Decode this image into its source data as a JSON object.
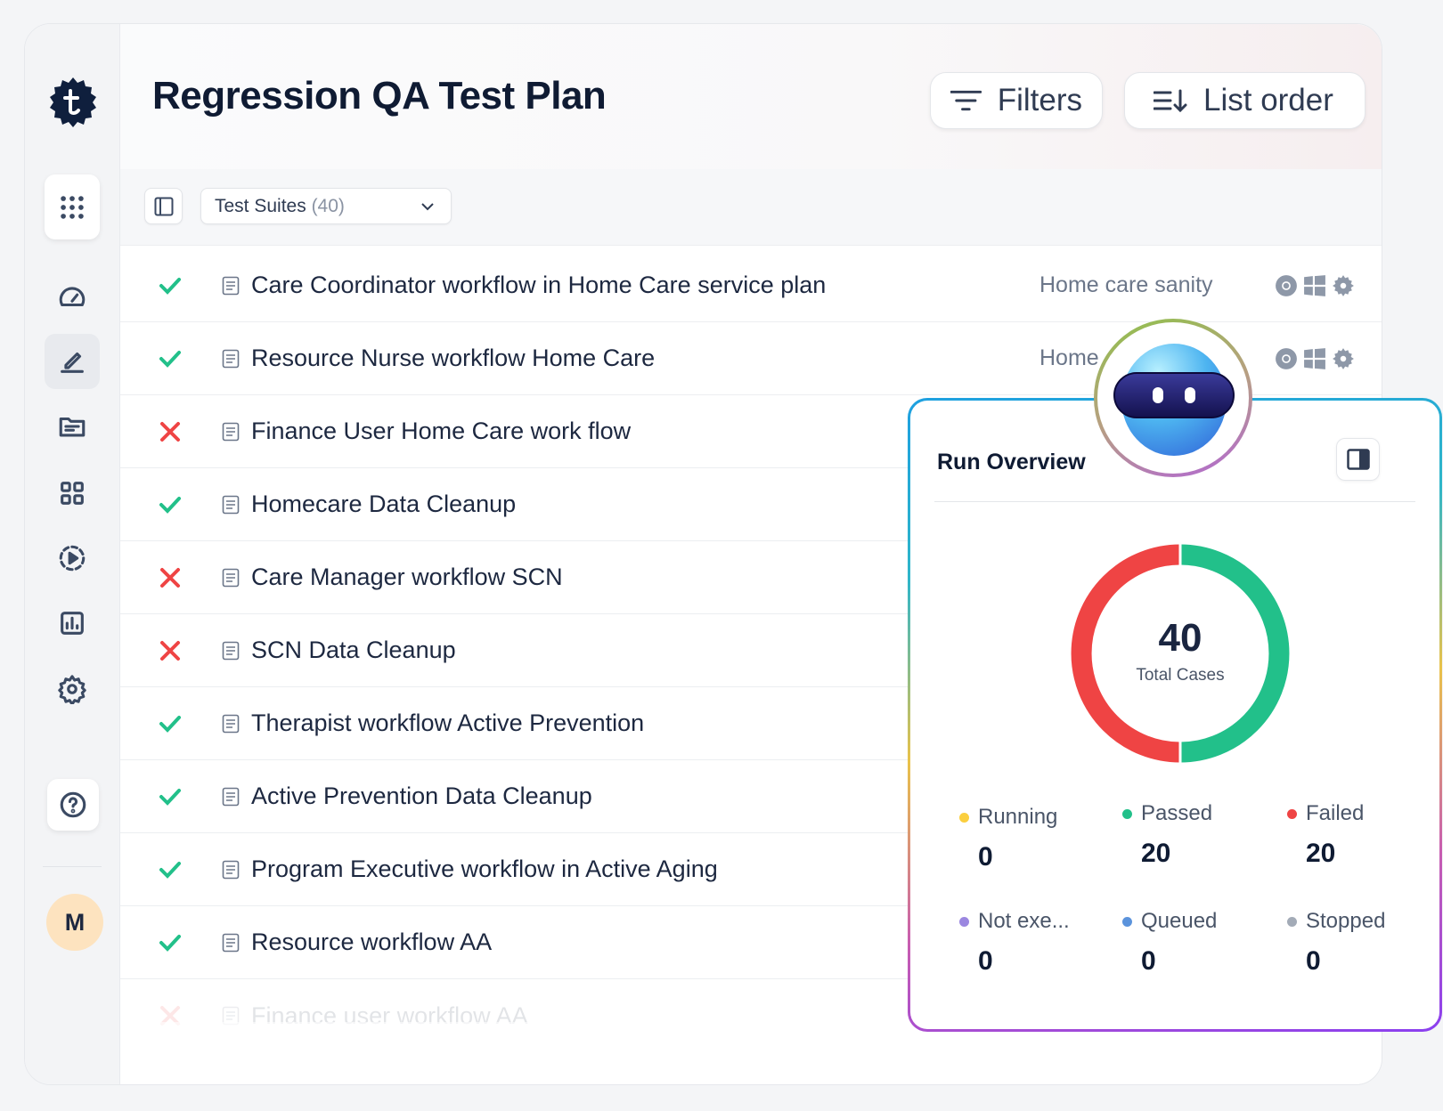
{
  "header": {
    "title": "Regression QA Test Plan",
    "filters_label": "Filters",
    "list_order_label": "List order"
  },
  "toolbar": {
    "dropdown_label": "Test Suites",
    "dropdown_count": "(40)"
  },
  "sidebar": {
    "avatar_initial": "M",
    "items": [
      "apps",
      "dashboard",
      "test-editor",
      "files",
      "modules",
      "runs",
      "reports",
      "settings"
    ],
    "active": "test-editor"
  },
  "colors": {
    "passed": "#22c08a",
    "failed": "#ef4444",
    "running": "#fbcf3f",
    "not_executed": "#9b87e0",
    "queued": "#5b93dc",
    "stopped": "#a3abb7"
  },
  "rows": [
    {
      "status": "passed",
      "name": "Care Coordinator workflow in Home Care service plan",
      "tag": "Home care sanity",
      "icons": [
        "chrome-icon",
        "windows-icon",
        "settings-gear-icon"
      ]
    },
    {
      "status": "passed",
      "name": "Resource Nurse workflow Home Care",
      "tag": "Home",
      "icons": [
        "chrome-icon",
        "windows-icon",
        "settings-gear-icon"
      ]
    },
    {
      "status": "failed",
      "name": "Finance User Home Care work flow"
    },
    {
      "status": "passed",
      "name": "Homecare Data Cleanup"
    },
    {
      "status": "failed",
      "name": "Care Manager workflow SCN"
    },
    {
      "status": "failed",
      "name": "SCN Data Cleanup"
    },
    {
      "status": "passed",
      "name": "Therapist workflow Active Prevention"
    },
    {
      "status": "passed",
      "name": "Active Prevention Data Cleanup"
    },
    {
      "status": "passed",
      "name": "Program Executive workflow in Active Aging"
    },
    {
      "status": "passed",
      "name": "Resource workflow AA"
    },
    {
      "status": "failed",
      "name": "Finance user workflow AA",
      "faded": true
    }
  ],
  "overview": {
    "title": "Run Overview",
    "total": "40",
    "total_label": "Total Cases",
    "chart_data": {
      "type": "pie",
      "style": "donut",
      "categories": [
        "Passed",
        "Failed"
      ],
      "values": [
        20,
        20
      ]
    },
    "stats": [
      {
        "label": "Running",
        "value": "0",
        "color": "#fbcf3f"
      },
      {
        "label": "Passed",
        "value": "20",
        "color": "#22c08a"
      },
      {
        "label": "Failed",
        "value": "20",
        "color": "#ef4444"
      },
      {
        "label": "Not exe...",
        "value": "0",
        "color": "#9b87e0"
      },
      {
        "label": "Queued",
        "value": "0",
        "color": "#5b93dc"
      },
      {
        "label": "Stopped",
        "value": "0",
        "color": "#a3abb7"
      }
    ]
  }
}
